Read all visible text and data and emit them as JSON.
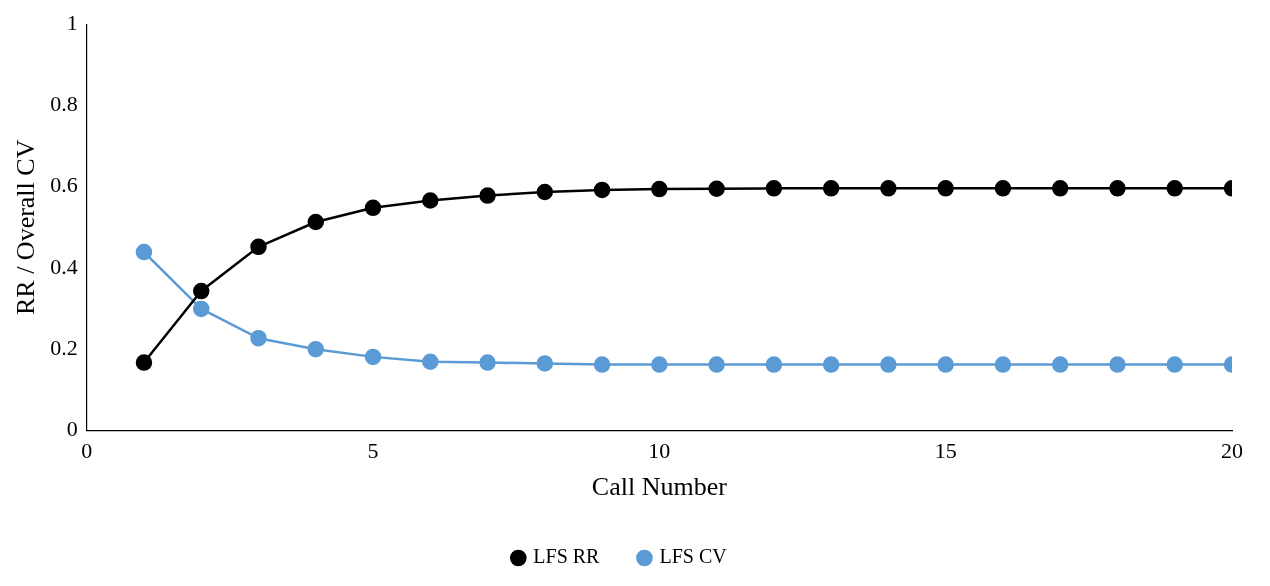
{
  "chart_data": {
    "type": "line",
    "xlabel": "Call Number",
    "ylabel": "RR / Overall CV",
    "x": [
      1,
      2,
      3,
      4,
      5,
      6,
      7,
      8,
      9,
      10,
      11,
      12,
      13,
      14,
      15,
      16,
      17,
      18,
      19,
      20
    ],
    "series": [
      {
        "name": "LFS RR",
        "color": "#000000",
        "values": [
          0.167,
          0.343,
          0.452,
          0.513,
          0.548,
          0.566,
          0.578,
          0.587,
          0.592,
          0.594,
          0.595,
          0.596,
          0.596,
          0.596,
          0.596,
          0.596,
          0.596,
          0.596,
          0.596,
          0.596
        ]
      },
      {
        "name": "LFS CV",
        "color": "#5b9bd5",
        "values": [
          0.439,
          0.299,
          0.227,
          0.2,
          0.181,
          0.169,
          0.167,
          0.165,
          0.162,
          0.162,
          0.162,
          0.162,
          0.162,
          0.162,
          0.162,
          0.162,
          0.162,
          0.162,
          0.162,
          0.162
        ]
      }
    ],
    "xlim": [
      0,
      20
    ],
    "xticks": [
      0,
      5,
      10,
      15,
      20
    ],
    "ylim": [
      0,
      1
    ],
    "yticks": [
      0,
      0.2,
      0.4,
      0.6,
      0.8,
      1
    ],
    "grid": false,
    "legend": "bottom",
    "marker": "circle",
    "line_style": "solid"
  }
}
